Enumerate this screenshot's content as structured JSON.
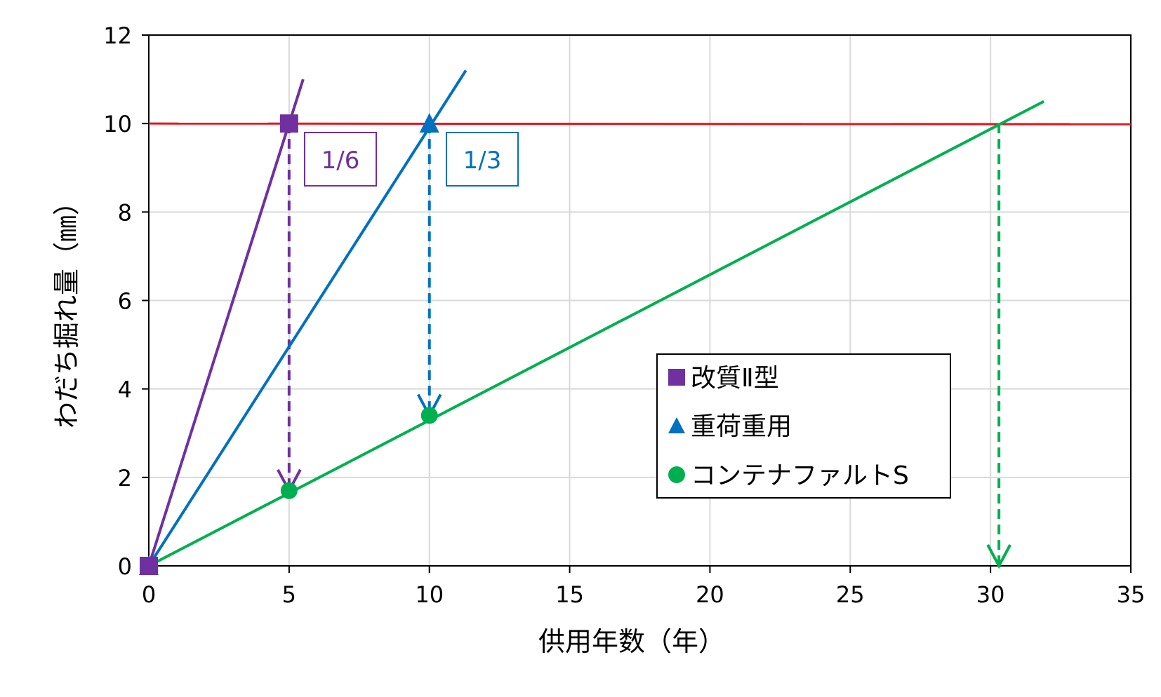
{
  "chart_data": {
    "type": "line",
    "xlabel": "供用年数（年）",
    "ylabel": "わだち掘れ量（㎜）",
    "xlim": [
      0,
      35
    ],
    "ylim": [
      0,
      12
    ],
    "x_ticks": [
      "0",
      "5",
      "10",
      "15",
      "20",
      "25",
      "30",
      "35"
    ],
    "y_ticks": [
      "0",
      "2",
      "4",
      "6",
      "8",
      "10",
      "12"
    ],
    "grid": true,
    "legend_position": "center-right",
    "threshold": {
      "y": 10,
      "color": "#e8141c"
    },
    "series": [
      {
        "name": "改質Ⅱ型",
        "color": "#7030a0",
        "marker": "square",
        "line": [
          [
            0,
            0
          ],
          [
            5.5,
            11
          ]
        ],
        "points": [
          [
            0,
            0
          ],
          [
            5,
            10
          ]
        ]
      },
      {
        "name": "重荷重用",
        "color": "#0070c0",
        "marker": "triangle",
        "line": [
          [
            0,
            0
          ],
          [
            11.3,
            11.2
          ]
        ],
        "points": [
          [
            0,
            0
          ],
          [
            10,
            10
          ]
        ]
      },
      {
        "name": "コンテナファルトS",
        "color": "#00b050",
        "marker": "circle",
        "line": [
          [
            0,
            0
          ],
          [
            31.9,
            10.5
          ]
        ],
        "points": [
          [
            0,
            0
          ],
          [
            5,
            1.7
          ],
          [
            10,
            3.4
          ]
        ]
      }
    ],
    "arrows": [
      {
        "x": 5,
        "from_y": 10,
        "to_y": 1.7,
        "color": "#7030a0"
      },
      {
        "x": 10,
        "from_y": 10,
        "to_y": 3.4,
        "color": "#0070c0"
      },
      {
        "x": 30.3,
        "from_y": 10,
        "to_y": 0,
        "color": "#00b050"
      }
    ],
    "annotations": [
      {
        "text": "1/6",
        "color": "#7030a0"
      },
      {
        "text": "1/3",
        "color": "#0070c0"
      }
    ]
  }
}
